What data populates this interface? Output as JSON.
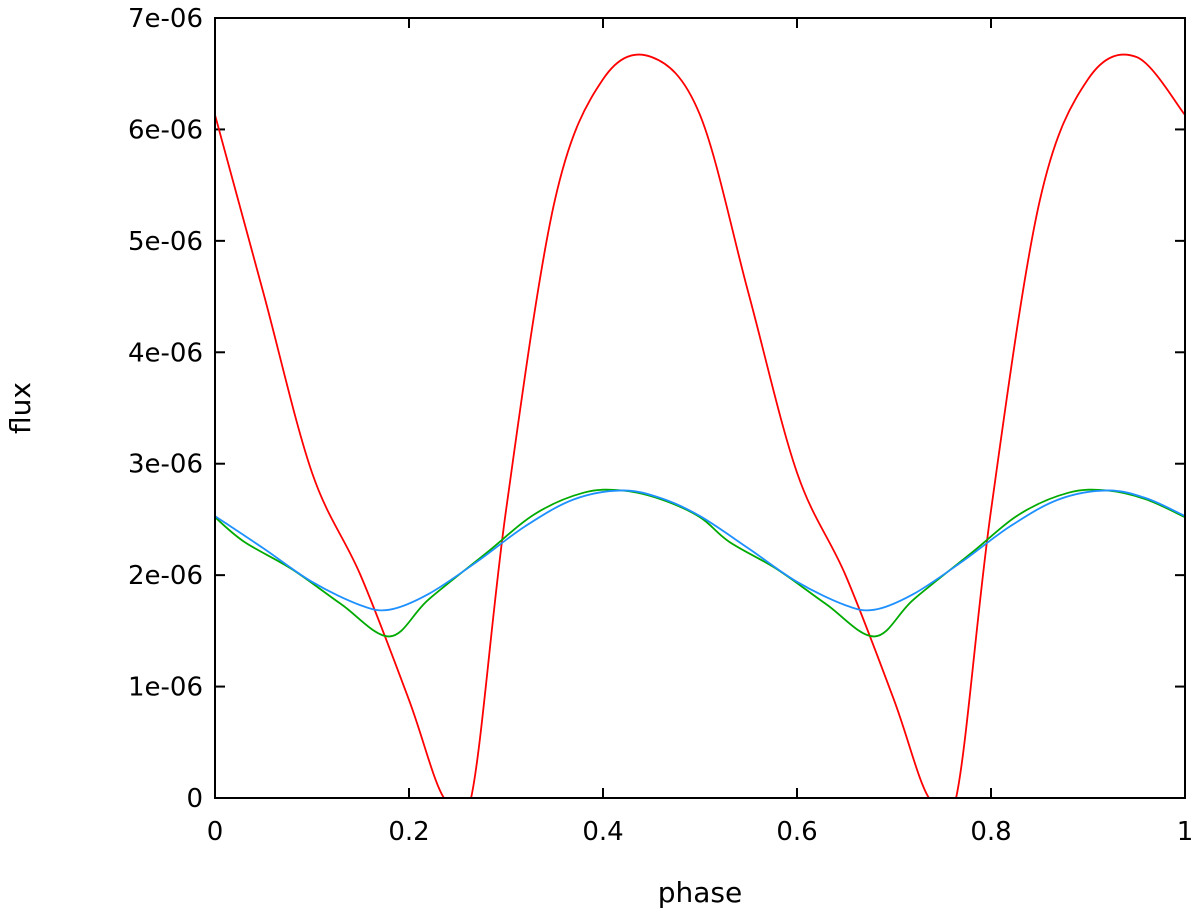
{
  "chart_data": {
    "type": "line",
    "title": "",
    "xlabel": "phase",
    "ylabel": "flux",
    "xlim": [
      0,
      1
    ],
    "ylim": [
      0,
      7e-06
    ],
    "x_ticks": [
      {
        "value": 0,
        "label": "0"
      },
      {
        "value": 0.2,
        "label": "0.2"
      },
      {
        "value": 0.4,
        "label": "0.4"
      },
      {
        "value": 0.6,
        "label": "0.6"
      },
      {
        "value": 0.8,
        "label": "0.8"
      },
      {
        "value": 1,
        "label": "1"
      }
    ],
    "y_ticks": [
      {
        "value": 0,
        "label": "0"
      },
      {
        "value": 1e-06,
        "label": "1e-06"
      },
      {
        "value": 2e-06,
        "label": "2e-06"
      },
      {
        "value": 3e-06,
        "label": "3e-06"
      },
      {
        "value": 4e-06,
        "label": "4e-06"
      },
      {
        "value": 5e-06,
        "label": "5e-06"
      },
      {
        "value": 6e-06,
        "label": "6e-06"
      },
      {
        "value": 7e-06,
        "label": "7e-06"
      }
    ],
    "grid": false,
    "legend": "none",
    "series": [
      {
        "color": "#ff0000",
        "x": [
          0,
          0.05,
          0.1,
          0.15,
          0.2,
          0.236,
          0.264,
          0.3,
          0.35,
          0.4,
          0.45,
          0.5,
          0.55,
          0.6,
          0.65,
          0.7,
          0.736,
          0.764,
          0.8,
          0.85,
          0.9,
          0.95,
          1.0
        ],
        "y": [
          6.13e-06,
          4.53e-06,
          2.92e-06,
          2e-06,
          8.8e-07,
          0,
          0,
          2.58e-06,
          5.35e-06,
          6.45e-06,
          6.65e-06,
          6.13e-06,
          4.53e-06,
          2.92e-06,
          2e-06,
          8.8e-07,
          0,
          0,
          2.58e-06,
          5.35e-06,
          6.45e-06,
          6.65e-06,
          6.13e-06
        ]
      },
      {
        "color": "#00aa00",
        "x": [
          0,
          0.03,
          0.08,
          0.13,
          0.18,
          0.22,
          0.28,
          0.33,
          0.38,
          0.42,
          0.46,
          0.5,
          0.53,
          0.58,
          0.63,
          0.68,
          0.72,
          0.78,
          0.83,
          0.88,
          0.92,
          0.96,
          1.0
        ],
        "y": [
          2.52e-06,
          2.3e-06,
          2.05e-06,
          1.74e-06,
          1.45e-06,
          1.78e-06,
          2.2e-06,
          2.55e-06,
          2.74e-06,
          2.76e-06,
          2.68e-06,
          2.52e-06,
          2.3e-06,
          2.05e-06,
          1.74e-06,
          1.45e-06,
          1.78e-06,
          2.2e-06,
          2.55e-06,
          2.74e-06,
          2.76e-06,
          2.68e-06,
          2.52e-06
        ]
      },
      {
        "color": "#1e90ff",
        "x": [
          0,
          0.05,
          0.1,
          0.15,
          0.18,
          0.22,
          0.27,
          0.32,
          0.37,
          0.42,
          0.46,
          0.5,
          0.55,
          0.6,
          0.65,
          0.68,
          0.72,
          0.77,
          0.82,
          0.87,
          0.92,
          0.96,
          1.0
        ],
        "y": [
          2.53e-06,
          2.24e-06,
          1.94e-06,
          1.73e-06,
          1.69e-06,
          1.83e-06,
          2.12e-06,
          2.44e-06,
          2.68e-06,
          2.76e-06,
          2.69e-06,
          2.53e-06,
          2.24e-06,
          1.94e-06,
          1.73e-06,
          1.69e-06,
          1.83e-06,
          2.12e-06,
          2.44e-06,
          2.68e-06,
          2.76e-06,
          2.69e-06,
          2.53e-06
        ]
      }
    ]
  }
}
